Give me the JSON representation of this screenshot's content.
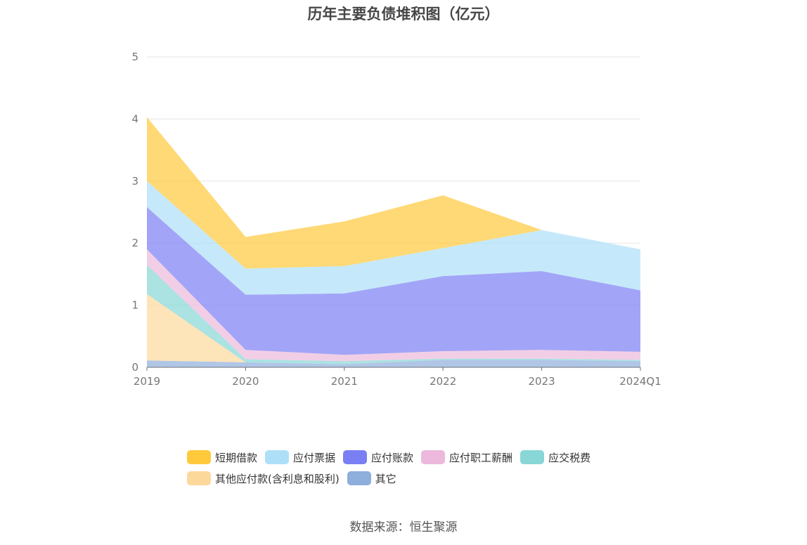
{
  "chart_data": {
    "type": "area",
    "stacked": true,
    "title": "历年主要负债堆积图（亿元）",
    "categories": [
      "2019",
      "2020",
      "2021",
      "2022",
      "2023",
      "2024Q1"
    ],
    "y_ticks": [
      "0",
      "1",
      "2",
      "3",
      "4",
      "5"
    ],
    "ylim": [
      0,
      5
    ],
    "grid": true,
    "legend_position": "bottom",
    "series": [
      {
        "name": "其它",
        "color": "#8eaedc",
        "values": [
          0.11,
          0.08,
          0.05,
          0.12,
          0.12,
          0.1
        ]
      },
      {
        "name": "其他应付款(含利息和股利)",
        "color": "#fdd89b",
        "values": [
          1.07,
          0.0,
          0.0,
          0.0,
          0.0,
          0.0
        ]
      },
      {
        "name": "应交税费",
        "color": "#88d6d6",
        "values": [
          0.47,
          0.05,
          0.05,
          0.02,
          0.02,
          0.02
        ]
      },
      {
        "name": "应付职工薪酬",
        "color": "#ecb9dc",
        "values": [
          0.25,
          0.15,
          0.1,
          0.12,
          0.14,
          0.13
        ]
      },
      {
        "name": "应付账款",
        "color": "#7b7ff4",
        "values": [
          0.68,
          0.89,
          0.99,
          1.21,
          1.27,
          0.99
        ]
      },
      {
        "name": "应付票据",
        "color": "#ade0f8",
        "values": [
          0.42,
          0.42,
          0.44,
          0.45,
          0.66,
          0.66
        ]
      },
      {
        "name": "短期借款",
        "color": "#ffc93c",
        "values": [
          1.03,
          0.51,
          0.72,
          0.85,
          0.0,
          0.0
        ]
      }
    ]
  },
  "legend_order": [
    "短期借款",
    "应付票据",
    "应付账款",
    "应付职工薪酬",
    "应交税费",
    "其他应付款(含利息和股利)",
    "其它"
  ],
  "source_text": "数据来源：恒生聚源"
}
